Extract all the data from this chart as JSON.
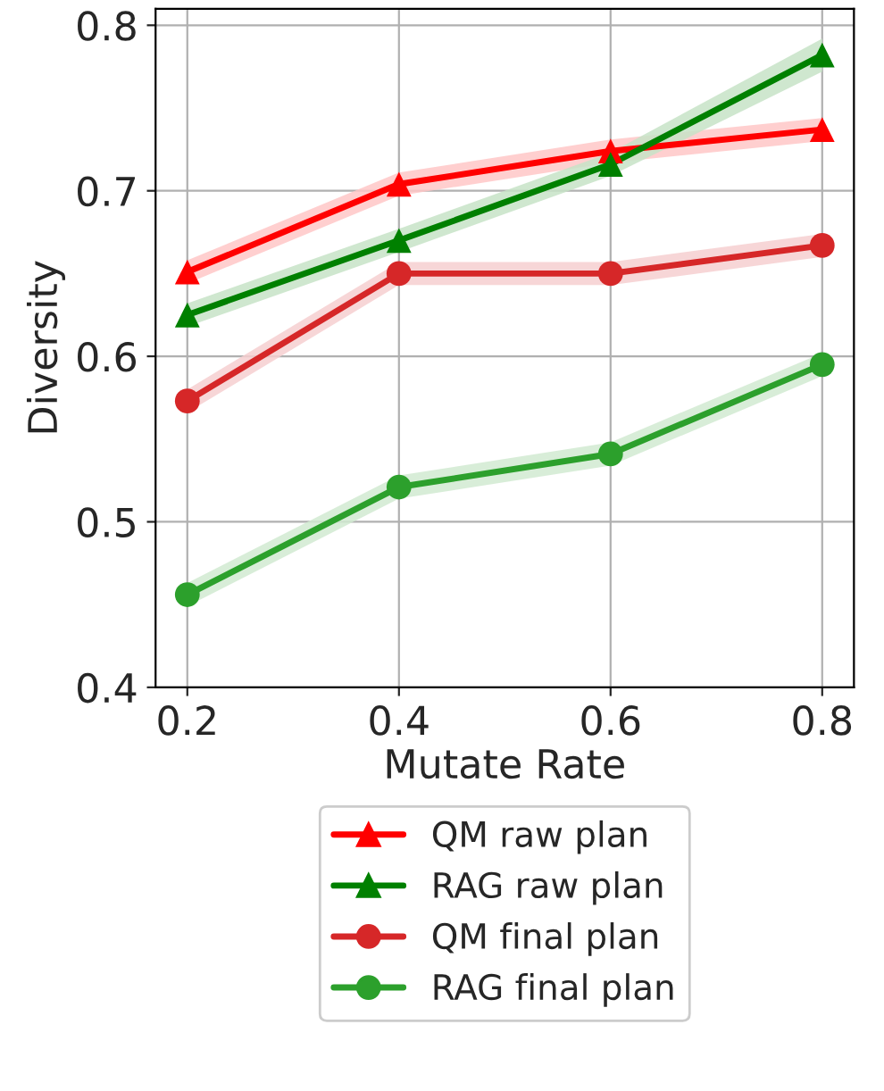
{
  "chart_data": {
    "type": "line",
    "xlabel": "Mutate Rate",
    "ylabel": "Diversity",
    "x": [
      0.2,
      0.4,
      0.6,
      0.8
    ],
    "series": [
      {
        "name": "QM raw plan",
        "color": "#ff0000",
        "marker": "triangle",
        "values": [
          0.651,
          0.704,
          0.724,
          0.737
        ],
        "lower": [
          0.644,
          0.697,
          0.717,
          0.73
        ],
        "upper": [
          0.658,
          0.711,
          0.731,
          0.744
        ]
      },
      {
        "name": "RAG raw plan",
        "color": "#008000",
        "marker": "triangle",
        "values": [
          0.625,
          0.67,
          0.716,
          0.782
        ],
        "lower": [
          0.618,
          0.663,
          0.709,
          0.772
        ],
        "upper": [
          0.632,
          0.677,
          0.723,
          0.792
        ]
      },
      {
        "name": "QM final plan",
        "color": "#d62728",
        "marker": "circle",
        "values": [
          0.573,
          0.65,
          0.65,
          0.667
        ],
        "lower": [
          0.566,
          0.643,
          0.643,
          0.66
        ],
        "upper": [
          0.58,
          0.657,
          0.657,
          0.674
        ]
      },
      {
        "name": "RAG final plan",
        "color": "#2ca02c",
        "marker": "circle",
        "values": [
          0.456,
          0.521,
          0.541,
          0.595
        ],
        "lower": [
          0.449,
          0.514,
          0.534,
          0.588
        ],
        "upper": [
          0.463,
          0.528,
          0.548,
          0.602
        ]
      }
    ],
    "xlim": [
      0.17,
      0.83
    ],
    "ylim": [
      0.4,
      0.81
    ],
    "xticks": [
      {
        "value": 0.2,
        "label": "0.2"
      },
      {
        "value": 0.4,
        "label": "0.4"
      },
      {
        "value": 0.6,
        "label": "0.6"
      },
      {
        "value": 0.8,
        "label": "0.8"
      }
    ],
    "yticks": [
      {
        "value": 0.4,
        "label": "0.4"
      },
      {
        "value": 0.5,
        "label": "0.5"
      },
      {
        "value": 0.6,
        "label": "0.6"
      },
      {
        "value": 0.7,
        "label": "0.7"
      },
      {
        "value": 0.8,
        "label": "0.8"
      }
    ],
    "grid": true,
    "legend": "bottom",
    "line_style": "solid"
  }
}
